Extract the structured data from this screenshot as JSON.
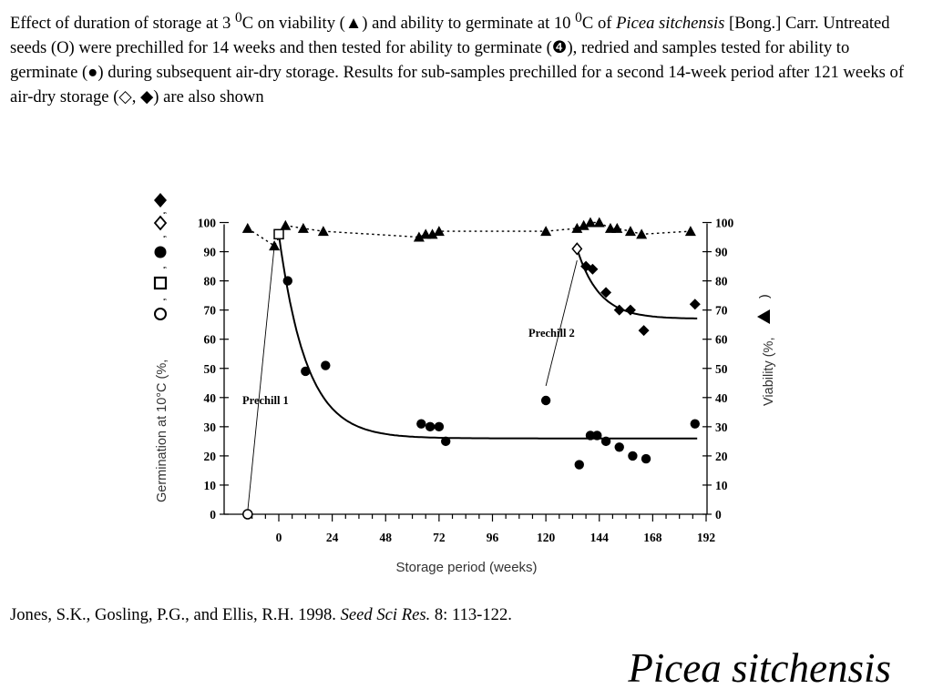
{
  "caption": {
    "p1": "Effect of duration of storage at 3 ",
    "sup1": "0",
    "p2": "C on viability (▲) and ability to germinate at 10 ",
    "sup2": "0",
    "p3": "C of ",
    "species": "Picea sitchensis",
    "p4": " [Bong.] Carr.  Untreated seeds (O) were prechilled for 14 weeks and then tested for ability to germinate (❹), redried and samples tested for ability to germinate (●) during subsequent air-dry storage.  Results for sub-samples prechilled for a second 14-week period after 121 weeks of air-dry storage (◇, ◆) are also shown"
  },
  "citation": {
    "authors": "Jones, S.K., Gosling, P.G., and Ellis, R.H. 1998. ",
    "journal": "Seed Sci Res.",
    "pages": " 8: 113-122."
  },
  "species_title": "Picea sitchensis",
  "chart_data": {
    "type": "scatter",
    "xlabel": "Storage period (weeks)",
    "ylabel_left": "Germination at 10°C (%,",
    "ylabel_right": "Viability (%,",
    "xlim": [
      -18,
      196
    ],
    "ylim": [
      0,
      100
    ],
    "x_ticks": [
      0,
      24,
      48,
      72,
      96,
      120,
      144,
      168,
      192
    ],
    "y_ticks": [
      0,
      10,
      20,
      30,
      40,
      50,
      60,
      70,
      80,
      90,
      100
    ],
    "annotations": [
      "Prechill 1",
      "Prechill 2"
    ],
    "series": [
      {
        "marker": "triangle",
        "line": "dotted",
        "points": [
          [
            -14,
            98
          ],
          [
            -2,
            92
          ],
          [
            3,
            99
          ],
          [
            11,
            98
          ],
          [
            20,
            97
          ],
          [
            63,
            95
          ],
          [
            66,
            96
          ],
          [
            69,
            96
          ],
          [
            72,
            97
          ],
          [
            120,
            97
          ],
          [
            134,
            98
          ],
          [
            137,
            99
          ],
          [
            140,
            100
          ],
          [
            144,
            100
          ],
          [
            149,
            98
          ],
          [
            152,
            98
          ],
          [
            158,
            97
          ],
          [
            163,
            96
          ],
          [
            185,
            97
          ]
        ]
      },
      {
        "marker": "open-circle",
        "points": [
          [
            -14,
            0
          ]
        ]
      },
      {
        "marker": "open-square",
        "points": [
          [
            0,
            96
          ]
        ]
      },
      {
        "marker": "filled-circle",
        "points": [
          [
            4,
            80
          ],
          [
            12,
            49
          ],
          [
            21,
            51
          ],
          [
            64,
            31
          ],
          [
            68,
            30
          ],
          [
            72,
            30
          ],
          [
            75,
            25
          ],
          [
            120,
            39
          ],
          [
            135,
            17
          ],
          [
            140,
            27
          ],
          [
            143,
            27
          ],
          [
            147,
            25
          ],
          [
            153,
            23
          ],
          [
            159,
            20
          ],
          [
            165,
            19
          ],
          [
            187,
            31
          ]
        ]
      },
      {
        "marker": "open-diamond",
        "points": [
          [
            134,
            91
          ]
        ]
      },
      {
        "marker": "filled-diamond",
        "points": [
          [
            138,
            85
          ],
          [
            141,
            84
          ],
          [
            147,
            76
          ],
          [
            153,
            70
          ],
          [
            158,
            70
          ],
          [
            164,
            63
          ],
          [
            187,
            72
          ]
        ]
      }
    ]
  }
}
